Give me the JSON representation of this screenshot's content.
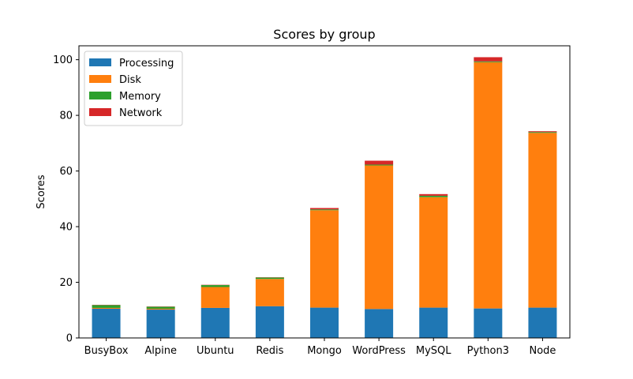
{
  "chart_data": {
    "type": "bar",
    "stacked": true,
    "title": "Scores by group",
    "xlabel": "",
    "ylabel": "Scores",
    "ylim": [
      0,
      105
    ],
    "yticks": [
      0,
      20,
      40,
      60,
      80,
      100
    ],
    "grid": false,
    "legend_placement": "top-left",
    "categories": [
      "BusyBox",
      "Alpine",
      "Ubuntu",
      "Redis",
      "Mongo",
      "WordPress",
      "MySQL",
      "Python3",
      "Node"
    ],
    "series": [
      {
        "name": "Processing",
        "color": "#1f77b4",
        "values": [
          10.5,
          10.2,
          10.8,
          11.4,
          10.9,
          10.4,
          10.9,
          10.6,
          10.9
        ]
      },
      {
        "name": "Disk",
        "color": "#ff7f0e",
        "values": [
          0.3,
          0.3,
          7.5,
          9.8,
          35.0,
          51.6,
          39.7,
          88.5,
          62.8
        ]
      },
      {
        "name": "Memory",
        "color": "#2ca02c",
        "values": [
          1.0,
          0.7,
          0.7,
          0.5,
          0.3,
          0.3,
          0.5,
          0.3,
          0.3
        ]
      },
      {
        "name": "Network",
        "color": "#d62728",
        "values": [
          0.1,
          0.1,
          0.1,
          0.1,
          0.5,
          1.4,
          0.6,
          1.5,
          0.3
        ]
      }
    ]
  }
}
